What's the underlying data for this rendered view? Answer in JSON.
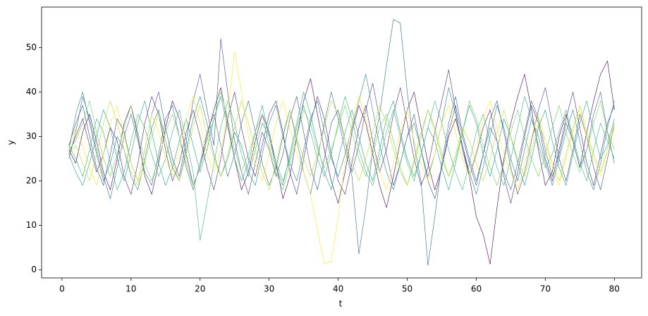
{
  "chart_data": {
    "type": "line",
    "xlabel": "t",
    "ylabel": "y",
    "xlim": [
      -2.95,
      83.95
    ],
    "ylim": [
      -1.8,
      59.1
    ],
    "xticks": [
      0,
      10,
      20,
      30,
      40,
      50,
      60,
      70,
      80
    ],
    "yticks": [
      0,
      10,
      20,
      30,
      40,
      50
    ],
    "x": [
      1,
      2,
      3,
      4,
      5,
      6,
      7,
      8,
      9,
      10,
      11,
      12,
      13,
      14,
      15,
      16,
      17,
      18,
      19,
      20,
      21,
      22,
      23,
      24,
      25,
      26,
      27,
      28,
      29,
      30,
      31,
      32,
      33,
      34,
      35,
      36,
      37,
      38,
      39,
      40,
      41,
      42,
      43,
      44,
      45,
      46,
      47,
      48,
      49,
      50,
      51,
      52,
      53,
      54,
      55,
      56,
      57,
      58,
      59,
      60,
      61,
      62,
      63,
      64,
      65,
      66,
      67,
      68,
      69,
      70,
      71,
      72,
      73,
      74,
      75,
      76,
      77,
      78,
      79,
      80
    ],
    "series": [
      {
        "color": "#440154",
        "values": [
          27,
          24,
          31,
          35,
          29,
          22,
          18,
          25,
          33,
          37,
          30,
          21,
          17,
          24,
          32,
          38,
          34,
          26,
          19,
          23,
          30,
          36,
          41,
          33,
          25,
          18,
          22,
          29,
          35,
          31,
          24,
          16,
          21,
          30,
          38,
          43,
          35,
          27,
          20,
          15,
          22,
          31,
          37,
          33,
          26,
          19,
          14,
          21,
          29,
          36,
          40,
          32,
          24,
          18,
          23,
          30,
          34,
          28,
          21,
          12,
          8,
          1.3,
          14,
          25,
          33,
          39,
          44,
          36,
          27,
          19,
          22,
          30,
          35,
          29,
          23,
          31,
          38,
          44,
          47,
          36
        ]
      },
      {
        "color": "#482878",
        "values": [
          26,
          30,
          34,
          28,
          22,
          26,
          32,
          29,
          21,
          17,
          24,
          33,
          39,
          35,
          27,
          20,
          24,
          31,
          36,
          30,
          23,
          18,
          25,
          34,
          40,
          32,
          25,
          21,
          28,
          35,
          38,
          31,
          22,
          17,
          25,
          33,
          39,
          34,
          26,
          20,
          17,
          24,
          32,
          37,
          29,
          22,
          27,
          35,
          41,
          33,
          25,
          19,
          23,
          31,
          38,
          45,
          36,
          27,
          21,
          26,
          32,
          36,
          29,
          21,
          15,
          22,
          30,
          37,
          33,
          25,
          20,
          27,
          34,
          40,
          32,
          24,
          19,
          26,
          33,
          37
        ]
      },
      {
        "color": "#3e4989",
        "values": [
          28,
          33,
          37,
          30,
          23,
          19,
          26,
          34,
          31,
          24,
          20,
          27,
          35,
          40,
          32,
          25,
          21,
          29,
          38,
          44,
          36,
          28,
          52,
          40,
          29,
          22,
          17,
          24,
          31,
          27,
          21,
          26,
          34,
          39,
          31,
          23,
          18,
          25,
          33,
          36,
          29,
          22,
          28,
          36,
          42,
          34,
          26,
          19,
          24,
          30,
          35,
          27,
          20,
          16,
          23,
          31,
          37,
          30,
          24,
          19,
          26,
          34,
          38,
          31,
          23,
          17,
          22,
          29,
          36,
          41,
          33,
          25,
          20,
          27,
          35,
          30,
          23,
          18,
          25,
          33
        ]
      },
      {
        "color": "#31688e",
        "values": [
          25,
          31,
          39,
          34,
          27,
          21,
          16,
          23,
          30,
          35,
          29,
          22,
          19,
          26,
          34,
          37,
          30,
          23,
          18,
          24,
          31,
          35,
          28,
          21,
          26,
          33,
          38,
          31,
          24,
          19,
          23,
          30,
          36,
          29,
          22,
          17,
          25,
          33,
          40,
          34,
          27,
          21,
          3.6,
          14,
          27,
          35,
          46,
          56.3,
          55.5,
          40,
          28,
          20,
          1,
          12,
          24,
          33,
          39,
          31,
          25,
          20,
          26,
          32,
          29,
          22,
          18,
          24,
          31,
          38,
          34,
          27,
          21,
          26,
          33,
          29,
          23,
          27,
          35,
          40,
          31,
          24
        ]
      },
      {
        "color": "#26828e",
        "values": [
          27,
          35,
          40,
          33,
          26,
          20,
          24,
          30,
          27,
          21,
          18,
          25,
          32,
          36,
          29,
          23,
          20,
          27,
          34,
          39,
          33,
          26,
          21,
          25,
          31,
          28,
          22,
          19,
          26,
          33,
          37,
          30,
          24,
          20,
          27,
          34,
          38,
          31,
          25,
          21,
          26,
          32,
          38,
          44,
          36,
          28,
          22,
          18,
          24,
          30,
          33,
          27,
          21,
          26,
          33,
          41,
          35,
          28,
          22,
          17,
          23,
          30,
          37,
          32,
          25,
          20,
          27,
          34,
          30,
          24,
          19,
          25,
          31,
          36,
          29,
          22,
          18,
          24,
          32,
          38
        ]
      },
      {
        "color": "#1f9e89",
        "values": [
          26,
          22,
          19,
          24,
          30,
          36,
          32,
          25,
          20,
          26,
          33,
          38,
          31,
          24,
          19,
          23,
          29,
          34,
          28,
          22,
          27,
          34,
          39,
          32,
          25,
          20,
          24,
          31,
          37,
          30,
          23,
          19,
          26,
          33,
          40,
          35,
          28,
          22,
          18,
          25,
          31,
          36,
          30,
          24,
          20,
          27,
          34,
          38,
          31,
          25,
          21,
          26,
          32,
          29,
          23,
          18,
          24,
          31,
          37,
          33,
          26,
          21,
          27,
          34,
          30,
          24,
          19,
          25,
          32,
          36,
          29,
          23,
          19,
          26,
          33,
          38,
          31,
          25,
          28,
          34
        ]
      },
      {
        "color": "#35b779",
        "values": [
          28,
          25,
          21,
          27,
          34,
          31,
          24,
          18,
          22,
          29,
          35,
          32,
          26,
          21,
          25,
          31,
          36,
          29,
          22,
          6.6,
          15,
          24,
          32,
          38,
          33,
          26,
          21,
          27,
          33,
          30,
          24,
          20,
          25,
          32,
          37,
          31,
          25,
          21,
          26,
          33,
          39,
          34,
          27,
          22,
          19,
          25,
          31,
          36,
          30,
          24,
          20,
          26,
          32,
          38,
          33,
          27,
          22,
          18,
          24,
          31,
          35,
          29,
          23,
          19,
          25,
          32,
          39,
          34,
          28,
          23,
          26,
          31,
          36,
          30,
          24,
          20,
          27,
          33,
          29,
          25
        ]
      },
      {
        "color": "#6ece58",
        "values": [
          27,
          29,
          33,
          38,
          31,
          25,
          21,
          26,
          32,
          37,
          31,
          24,
          20,
          25,
          31,
          35,
          30,
          24,
          19,
          23,
          29,
          34,
          40,
          34,
          27,
          22,
          26,
          31,
          35,
          28,
          22,
          18,
          24,
          30,
          36,
          33,
          27,
          23,
          27,
          32,
          37,
          31,
          25,
          21,
          26,
          32,
          35,
          29,
          23,
          19,
          24,
          30,
          36,
          32,
          26,
          21,
          25,
          31,
          38,
          34,
          28,
          23,
          19,
          24,
          31,
          36,
          30,
          25,
          21,
          26,
          32,
          37,
          31,
          26,
          22,
          27,
          33,
          38,
          31,
          27
        ]
      },
      {
        "color": "#b5de2b",
        "values": [
          26,
          28,
          24,
          20,
          26,
          33,
          38,
          33,
          27,
          22,
          19,
          24,
          30,
          35,
          29,
          24,
          20,
          26,
          32,
          37,
          30,
          25,
          21,
          26,
          32,
          38,
          33,
          27,
          22,
          18,
          24,
          31,
          36,
          30,
          25,
          21,
          26,
          32,
          38,
          35,
          29,
          24,
          20,
          25,
          31,
          37,
          33,
          27,
          22,
          19,
          25,
          31,
          36,
          31,
          25,
          21,
          26,
          32,
          29,
          24,
          20,
          25,
          31,
          36,
          30,
          25,
          21,
          27,
          33,
          29,
          24,
          20,
          26,
          32,
          37,
          31,
          26,
          22,
          27,
          33
        ]
      },
      {
        "color": "#fde725",
        "values": [
          27,
          32,
          28,
          23,
          19,
          26,
          33,
          37,
          30,
          24,
          20,
          27,
          35,
          31,
          25,
          21,
          27,
          34,
          39,
          33,
          26,
          22,
          27,
          35,
          49,
          40,
          30,
          24,
          20,
          26,
          33,
          38,
          32,
          26,
          22,
          17,
          9,
          1.3,
          2,
          12,
          24,
          33,
          39,
          34,
          27,
          22,
          18,
          24,
          31,
          36,
          29,
          24,
          20,
          26,
          33,
          37,
          31,
          25,
          21,
          27,
          34,
          38,
          32,
          26,
          22,
          18,
          24,
          30,
          35,
          29,
          23,
          19,
          25,
          31,
          36,
          30,
          25,
          21,
          27,
          32
        ]
      }
    ]
  }
}
